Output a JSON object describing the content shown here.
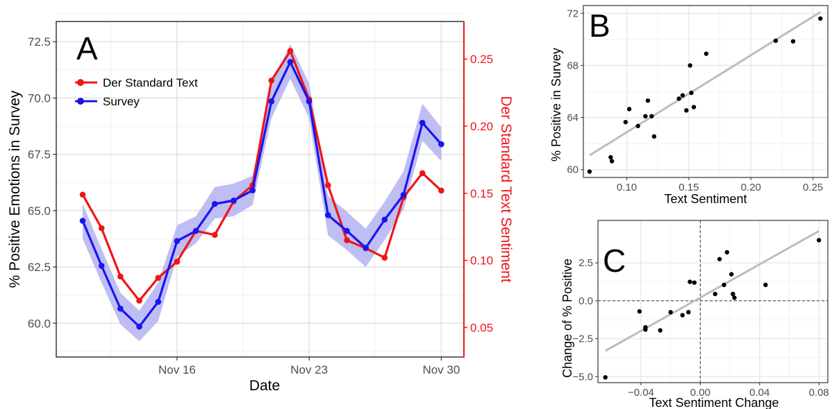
{
  "chart_data": [
    {
      "panel": "A",
      "type": "line",
      "xlabel": "Date",
      "ylabel": "% Positive Emotions in Survey",
      "y2label": "Der Standard Text Sentiment",
      "x_tick_labels": [
        "Nov 16",
        "Nov 23",
        "Nov 30"
      ],
      "x_tick_days": [
        16,
        23,
        30
      ],
      "xlim": [
        9.6,
        31.2
      ],
      "ylim": [
        58.5,
        73.4
      ],
      "y_ticks": [
        60.0,
        62.5,
        65.0,
        67.5,
        70.0,
        72.5
      ],
      "y_tick_labels": [
        "60.0",
        "62.5",
        "65.0",
        "67.5",
        "70.0",
        "72.5"
      ],
      "y2lim": [
        0.028,
        0.278
      ],
      "y2_ticks": [
        0.05,
        0.1,
        0.15,
        0.2,
        0.25
      ],
      "y2_tick_labels": [
        "0.05",
        "0.10",
        "0.15",
        "0.20",
        "0.25"
      ],
      "colors": {
        "survey": "#1a14f0",
        "text": "#f01414",
        "band": "#b3b3f2"
      },
      "series": [
        {
          "name": "Der Standard Text",
          "axis": "right",
          "x": [
            11,
            12,
            13,
            14,
            15,
            16,
            17,
            18,
            19,
            20,
            21,
            22,
            23,
            24,
            25,
            26,
            27,
            28,
            29,
            30
          ],
          "values": [
            0.149,
            0.124,
            0.088,
            0.07,
            0.087,
            0.099,
            0.122,
            0.119,
            0.144,
            0.156,
            0.234,
            0.256,
            0.22,
            0.156,
            0.115,
            0.109,
            0.102,
            0.147,
            0.165,
            0.152
          ]
        },
        {
          "name": "Survey",
          "axis": "left",
          "x": [
            11,
            12,
            13,
            14,
            15,
            16,
            17,
            18,
            19,
            20,
            21,
            22,
            23,
            24,
            25,
            26,
            27,
            28,
            29,
            30
          ],
          "values": [
            64.55,
            62.55,
            60.65,
            59.85,
            60.95,
            63.65,
            64.1,
            65.3,
            65.45,
            65.9,
            69.85,
            71.6,
            69.85,
            64.8,
            64.1,
            63.35,
            64.6,
            65.7,
            68.9,
            67.95
          ],
          "lower": [
            63.75,
            61.8,
            59.95,
            59.2,
            60.1,
            62.95,
            63.55,
            64.65,
            64.75,
            65.25,
            69.1,
            70.85,
            69.1,
            63.9,
            63.25,
            62.5,
            63.7,
            65.05,
            68.1,
            67.2
          ],
          "upper": [
            65.3,
            63.3,
            61.35,
            60.55,
            61.8,
            64.35,
            64.75,
            66.05,
            66.2,
            66.55,
            70.6,
            72.4,
            70.65,
            65.65,
            64.95,
            64.2,
            65.4,
            66.75,
            69.75,
            68.7
          ]
        }
      ],
      "legend": [
        "Der Standard Text",
        "Survey"
      ],
      "legend_position": "top-left",
      "grid": true
    },
    {
      "panel": "B",
      "type": "scatter",
      "xlabel": "Text Sentiment",
      "ylabel": "% Positive in Survey",
      "xlim": [
        0.065,
        0.262
      ],
      "ylim": [
        59.4,
        72.6
      ],
      "x_ticks": [
        0.1,
        0.15,
        0.2,
        0.25
      ],
      "x_tick_labels": [
        "0.10",
        "0.15",
        "0.20",
        "0.25"
      ],
      "y_ticks": [
        60,
        64,
        68,
        72
      ],
      "y_tick_labels": [
        "60",
        "64",
        "68",
        "72"
      ],
      "points": {
        "x": [
          0.07,
          0.087,
          0.088,
          0.099,
          0.102,
          0.109,
          0.115,
          0.117,
          0.12,
          0.122,
          0.142,
          0.145,
          0.148,
          0.151,
          0.152,
          0.154,
          0.164,
          0.22,
          0.234,
          0.256
        ],
        "y": [
          59.85,
          60.95,
          60.65,
          63.65,
          64.65,
          63.35,
          64.1,
          65.3,
          64.1,
          62.55,
          65.45,
          65.7,
          64.55,
          68.0,
          65.9,
          64.8,
          68.9,
          69.9,
          69.85,
          71.6
        ]
      },
      "fit_line": {
        "x": [
          0.07,
          0.256
        ],
        "y": [
          61.1,
          72.1
        ]
      },
      "grid": true
    },
    {
      "panel": "C",
      "type": "scatter",
      "xlabel": "Text Sentiment Change",
      "ylabel": "Change of % Positive",
      "xlim": [
        -0.069,
        0.086
      ],
      "ylim": [
        -5.4,
        5.3
      ],
      "x_ticks": [
        -0.04,
        0.0,
        0.04,
        0.08
      ],
      "x_tick_labels": [
        "−0.04",
        "0.00",
        "0.04",
        "0.08"
      ],
      "y_ticks": [
        -5.0,
        -2.5,
        0.0,
        2.5
      ],
      "y_tick_labels": [
        "−5.0",
        "−2.5",
        "0.0",
        "2.5"
      ],
      "points": {
        "x": [
          -0.064,
          -0.041,
          -0.037,
          -0.037,
          -0.027,
          -0.02,
          -0.012,
          -0.008,
          -0.007,
          -0.004,
          0.01,
          0.013,
          0.016,
          0.018,
          0.021,
          0.022,
          0.023,
          0.044,
          0.08
        ],
        "y": [
          -5.05,
          -0.7,
          -1.75,
          -1.9,
          -1.95,
          -0.75,
          -0.95,
          -0.75,
          1.25,
          1.2,
          0.45,
          2.75,
          1.05,
          3.2,
          1.75,
          0.45,
          0.2,
          1.05,
          4.0
        ]
      },
      "fit_line": {
        "x": [
          -0.064,
          0.08
        ],
        "y": [
          -3.3,
          4.6
        ]
      },
      "reference_lines": {
        "x": 0.0,
        "y": 0.0
      },
      "grid": true
    }
  ]
}
